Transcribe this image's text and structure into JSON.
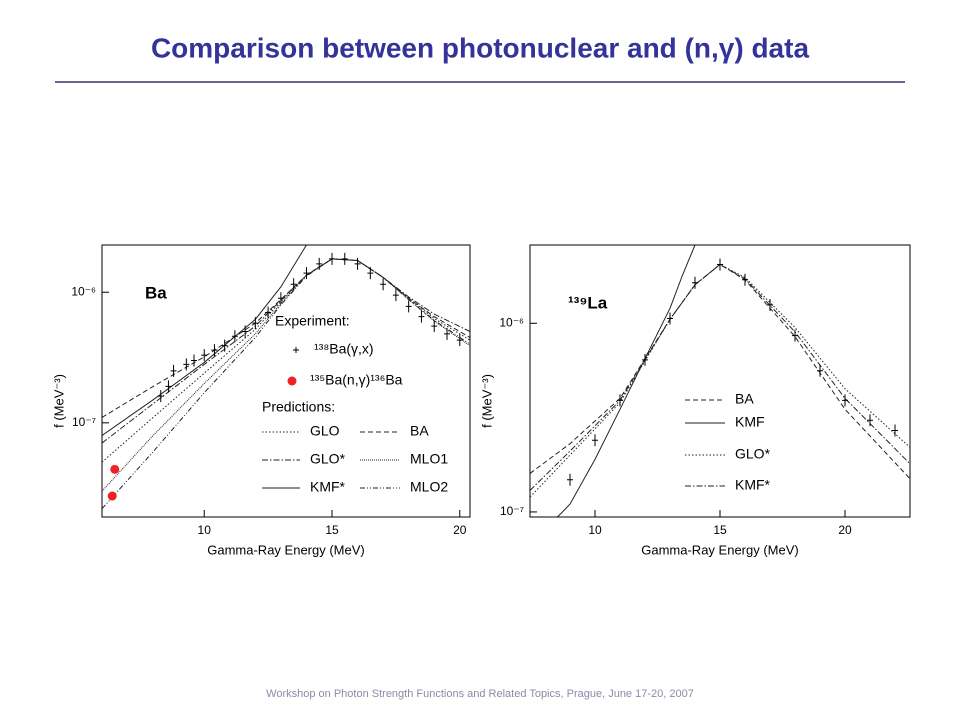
{
  "title": "Comparison between photonuclear and (n,γ) data",
  "footer": "Workshop on Photon Strength Functions and Related Topics, Prague, June 17-20, 2007",
  "chart_data": [
    {
      "type": "line",
      "panel_label": "Ba",
      "xlabel": "Gamma-Ray Energy (MeV)",
      "ylabel": "f (MeV⁻³)",
      "xlim": [
        6.0,
        20.4
      ],
      "ylim": [
        1.9e-08,
        2.3e-06
      ],
      "log_y": true,
      "xticks": [
        10,
        15,
        20
      ],
      "yticks": [
        {
          "value": 1e-07,
          "label": "10⁻⁷"
        },
        {
          "value": 1e-06,
          "label": "10⁻⁶"
        }
      ],
      "experiment_heading": "Experiment:",
      "predictions_heading": "Predictions:",
      "points": [
        {
          "name": "¹³⁸Ba(γ,x)",
          "marker": "plus",
          "color": "#000000",
          "x": [
            8.3,
            8.6,
            8.8,
            9.3,
            9.6,
            10.0,
            10.4,
            10.8,
            11.2,
            11.6,
            12.0,
            12.5,
            13.0,
            13.5,
            14.0,
            14.5,
            15.0,
            15.5,
            16.0,
            16.5,
            17.0,
            17.5,
            18.0,
            18.5,
            19.0,
            19.5,
            20.0
          ],
          "values": [
            1.6e-07,
            1.9e-07,
            2.5e-07,
            2.8e-07,
            3e-07,
            3.3e-07,
            3.6e-07,
            3.9e-07,
            4.6e-07,
            5e-07,
            5.8e-07,
            7e-07,
            9e-07,
            1.15e-06,
            1.4e-06,
            1.65e-06,
            1.8e-06,
            1.8e-06,
            1.65e-06,
            1.4e-06,
            1.15e-06,
            9.5e-07,
            7.8e-07,
            6.5e-07,
            5.5e-07,
            4.8e-07,
            4.3e-07
          ]
        },
        {
          "name": "¹³⁵Ba(n,γ)¹³⁶Ba",
          "marker": "dot",
          "color": "#ee2222",
          "x": [
            6.5,
            6.4
          ],
          "values": [
            4.4e-08,
            2.75e-08
          ]
        }
      ],
      "series": [
        {
          "name": "GLO",
          "dash": "dotted",
          "x": [
            6,
            8,
            10,
            12,
            13,
            14,
            15,
            16,
            17,
            18,
            19,
            20.4
          ],
          "values": [
            5e-08,
            1.1e-07,
            2.4e-07,
            5.2e-07,
            8.5e-07,
            1.35e-06,
            1.8e-06,
            1.75e-06,
            1.3e-06,
            9e-07,
            6.3e-07,
            4.3e-07
          ]
        },
        {
          "name": "BA",
          "dash": "dashed",
          "x": [
            6,
            8,
            10,
            12,
            13,
            14,
            15,
            16,
            17,
            18,
            19,
            20.4
          ],
          "values": [
            1.1e-07,
            1.9e-07,
            3.2e-07,
            5.8e-07,
            8.8e-07,
            1.35e-06,
            1.8e-06,
            1.75e-06,
            1.3e-06,
            9e-07,
            6.5e-07,
            4.5e-07
          ]
        },
        {
          "name": "GLO*",
          "dash": "dashdot",
          "x": [
            6,
            8,
            10,
            12,
            13,
            14,
            15,
            16,
            17,
            18,
            19,
            20.4
          ],
          "values": [
            7e-08,
            1.4e-07,
            2.8e-07,
            5.5e-07,
            8.7e-07,
            1.35e-06,
            1.8e-06,
            1.75e-06,
            1.3e-06,
            9.2e-07,
            6.8e-07,
            5e-07
          ]
        },
        {
          "name": "MLO1",
          "dash": "densedot",
          "x": [
            6,
            8,
            10,
            12,
            13,
            14,
            15,
            16,
            17,
            18,
            19,
            20.4
          ],
          "values": [
            3e-08,
            8e-08,
            2e-07,
            4.8e-07,
            8.2e-07,
            1.35e-06,
            1.8e-06,
            1.75e-06,
            1.3e-06,
            8.8e-07,
            6e-07,
            3.9e-07
          ]
        },
        {
          "name": "KMF*",
          "dash": "solid",
          "x": [
            6,
            8,
            10,
            12,
            13,
            14
          ],
          "values": [
            8e-08,
            1.5e-07,
            2.9e-07,
            6.2e-07,
            1.1e-06,
            2.3e-06
          ]
        },
        {
          "name": "MLO2",
          "dash": "dashdotdot",
          "x": [
            6,
            8,
            10,
            12,
            13,
            14,
            15,
            16,
            17,
            18,
            19,
            20.4
          ],
          "values": [
            2.2e-08,
            6e-08,
            1.7e-07,
            4.5e-07,
            8e-07,
            1.33e-06,
            1.8e-06,
            1.75e-06,
            1.3e-06,
            8.8e-07,
            6.1e-07,
            4e-07
          ]
        }
      ]
    },
    {
      "type": "line",
      "panel_label": "¹³⁹La",
      "xlabel": "Gamma-Ray Energy (MeV)",
      "ylabel": "f (MeV⁻³)",
      "xlim": [
        7.4,
        22.6
      ],
      "ylim": [
        9.4e-08,
        2.6e-06
      ],
      "log_y": true,
      "xticks": [
        10,
        15,
        20
      ],
      "yticks": [
        {
          "value": 1e-07,
          "label": "10⁻⁷"
        },
        {
          "value": 1e-06,
          "label": "10⁻⁶"
        }
      ],
      "points": [
        {
          "marker": "plus",
          "color": "#000000",
          "x": [
            9,
            10,
            11,
            12,
            13,
            14,
            15,
            16,
            17,
            18,
            19,
            20,
            21,
            22
          ],
          "values": [
            1.48e-07,
            2.4e-07,
            3.9e-07,
            6.4e-07,
            1.06e-06,
            1.64e-06,
            2.05e-06,
            1.7e-06,
            1.25e-06,
            8.6e-07,
            5.6e-07,
            3.9e-07,
            3.06e-07,
            2.7e-07
          ]
        }
      ],
      "series": [
        {
          "name": "BA",
          "dash": "dashed",
          "x": [
            7.4,
            9,
            11,
            13,
            14,
            15,
            16,
            18,
            20,
            22.6
          ],
          "values": [
            1.6e-07,
            2.3e-07,
            4e-07,
            1.05e-06,
            1.6e-06,
            2.05e-06,
            1.7e-06,
            8.5e-07,
            3.5e-07,
            1.5e-07
          ]
        },
        {
          "name": "KMF",
          "dash": "solid",
          "x": [
            8.5,
            9,
            10,
            11,
            12,
            13,
            13.5,
            14
          ],
          "values": [
            9.4e-08,
            1.1e-07,
            1.9e-07,
            3.5e-07,
            6.5e-07,
            1.2e-06,
            1.8e-06,
            2.6e-06
          ]
        },
        {
          "name": "GLO*",
          "dash": "dotted",
          "x": [
            7.4,
            9,
            11,
            13,
            14,
            15,
            16,
            18,
            20,
            22.6
          ],
          "values": [
            1.2e-07,
            2e-07,
            3.8e-07,
            1.05e-06,
            1.6e-06,
            2.05e-06,
            1.75e-06,
            9.5e-07,
            4.5e-07,
            2.2e-07
          ]
        },
        {
          "name": "KMF*",
          "dash": "dashdot",
          "x": [
            7.4,
            9,
            11,
            13,
            14,
            15,
            16,
            18,
            20,
            22.6
          ],
          "values": [
            1.3e-07,
            2.1e-07,
            3.9e-07,
            1.05e-06,
            1.6e-06,
            2.05e-06,
            1.72e-06,
            9e-07,
            4e-07,
            1.8e-07
          ]
        }
      ]
    }
  ]
}
